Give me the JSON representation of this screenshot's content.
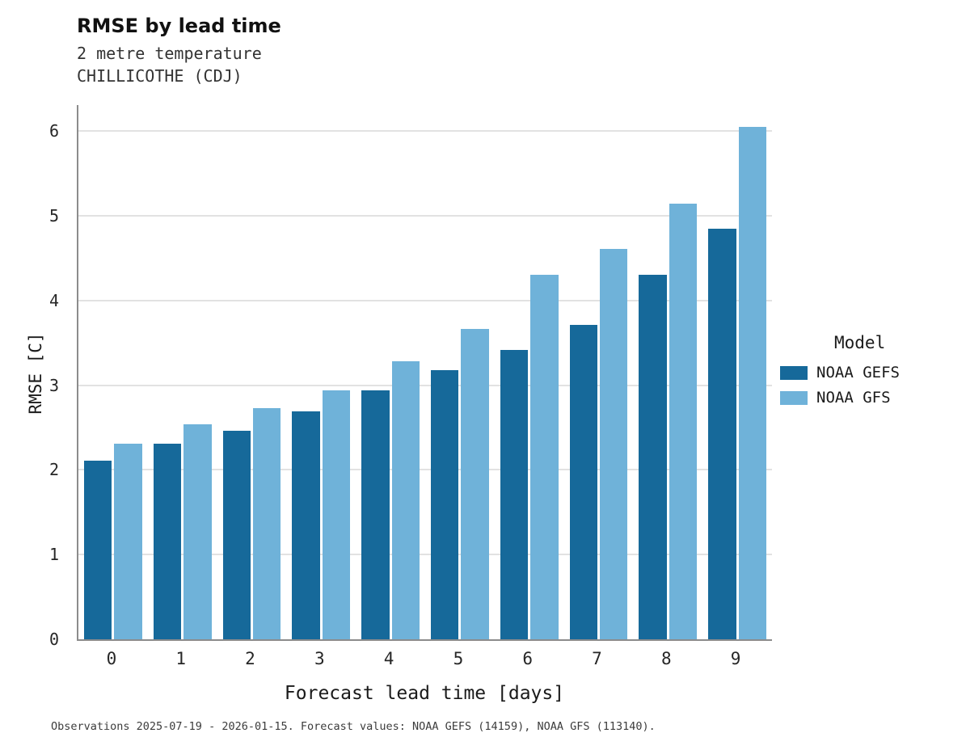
{
  "header": {
    "title": "RMSE by lead time",
    "subtitle_line1": "2 metre temperature",
    "subtitle_line2": "CHILLICOTHE (CDJ)"
  },
  "legend": {
    "title": "Model"
  },
  "footer": {
    "text": "Observations 2025-07-19 - 2026-01-15. Forecast values: NOAA GEFS (14159), NOAA GFS (113140)."
  },
  "chart_data": {
    "type": "bar",
    "title": "RMSE by lead time",
    "subtitle": [
      "2 metre temperature",
      "CHILLICOTHE (CDJ)"
    ],
    "categories": [
      0,
      1,
      2,
      3,
      4,
      5,
      6,
      7,
      8,
      9
    ],
    "series": [
      {
        "name": "NOAA GEFS",
        "color": "#16699a",
        "values": [
          2.11,
          2.31,
          2.46,
          2.69,
          2.94,
          3.18,
          3.42,
          3.71,
          4.31,
          4.85
        ]
      },
      {
        "name": "NOAA GFS",
        "color": "#6fb2d9",
        "values": [
          2.31,
          2.54,
          2.73,
          2.94,
          3.28,
          3.67,
          4.31,
          4.61,
          5.15,
          6.05
        ]
      }
    ],
    "xlabel": "Forecast lead time [days]",
    "ylabel": "RMSE [C]",
    "ylim": [
      0,
      6.31
    ],
    "yticks": [
      0,
      1,
      2,
      3,
      4,
      5,
      6
    ],
    "grid": true,
    "legend_title": "Model",
    "legend_position": "right"
  }
}
